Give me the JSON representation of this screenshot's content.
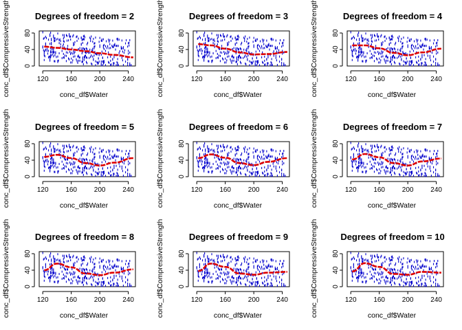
{
  "figure": {
    "xlabel": "conc_df$Water",
    "ylabel": "conc_df$CompressiveStrength",
    "title_prefix": "Degrees of freedom ="
  },
  "chart_data": [
    {
      "type": "scatter",
      "title": "Degrees of freedom =  2",
      "df": 2,
      "xlabel": "conc_df$Water",
      "ylabel": "conc_df$CompressiveStrength",
      "xticks": [
        120,
        160,
        200,
        240
      ],
      "yticks": [
        0,
        40,
        80
      ],
      "xlim": [
        115,
        250
      ],
      "ylim": [
        0,
        85
      ],
      "fit": {
        "x": [
          122,
          140,
          160,
          180,
          200,
          220,
          247
        ],
        "y": [
          47,
          44,
          40,
          36,
          31,
          27,
          21
        ]
      }
    },
    {
      "type": "scatter",
      "title": "Degrees of freedom =  3",
      "df": 3,
      "xlabel": "conc_df$Water",
      "ylabel": "conc_df$CompressiveStrength",
      "xticks": [
        120,
        160,
        200,
        240
      ],
      "yticks": [
        0,
        40,
        80
      ],
      "xlim": [
        115,
        250
      ],
      "ylim": [
        0,
        85
      ],
      "fit": {
        "x": [
          122,
          140,
          160,
          180,
          200,
          220,
          247
        ],
        "y": [
          53,
          50,
          42,
          33,
          28,
          29,
          34
        ]
      }
    },
    {
      "type": "scatter",
      "title": "Degrees of freedom =  4",
      "df": 4,
      "xlabel": "conc_df$Water",
      "ylabel": "conc_df$CompressiveStrength",
      "xticks": [
        120,
        160,
        200,
        240
      ],
      "yticks": [
        0,
        40,
        80
      ],
      "xlim": [
        115,
        250
      ],
      "ylim": [
        0,
        85
      ],
      "fit": {
        "x": [
          122,
          140,
          160,
          180,
          200,
          220,
          247
        ],
        "y": [
          50,
          50,
          43,
          32,
          26,
          33,
          42
        ]
      }
    },
    {
      "type": "scatter",
      "title": "Degrees of freedom =  5",
      "df": 5,
      "xlabel": "conc_df$Water",
      "ylabel": "conc_df$CompressiveStrength",
      "xticks": [
        120,
        160,
        200,
        240
      ],
      "yticks": [
        0,
        40,
        80
      ],
      "xlim": [
        115,
        250
      ],
      "ylim": [
        0,
        85
      ],
      "fit": {
        "x": [
          122,
          140,
          160,
          180,
          200,
          220,
          247
        ],
        "y": [
          48,
          53,
          45,
          33,
          27,
          34,
          45
        ]
      }
    },
    {
      "type": "scatter",
      "title": "Degrees of freedom =  6",
      "df": 6,
      "xlabel": "conc_df$Water",
      "ylabel": "conc_df$CompressiveStrength",
      "xticks": [
        120,
        160,
        200,
        240
      ],
      "yticks": [
        0,
        40,
        80
      ],
      "xlim": [
        115,
        250
      ],
      "ylim": [
        0,
        85
      ],
      "fit": {
        "x": [
          122,
          140,
          160,
          180,
          200,
          220,
          247
        ],
        "y": [
          45,
          54,
          46,
          33,
          28,
          36,
          45
        ]
      }
    },
    {
      "type": "scatter",
      "title": "Degrees of freedom =  7",
      "df": 7,
      "xlabel": "conc_df$Water",
      "ylabel": "conc_df$CompressiveStrength",
      "xticks": [
        120,
        160,
        200,
        240
      ],
      "yticks": [
        0,
        40,
        80
      ],
      "xlim": [
        115,
        250
      ],
      "ylim": [
        0,
        85
      ],
      "fit": {
        "x": [
          122,
          140,
          160,
          180,
          200,
          220,
          247
        ],
        "y": [
          42,
          55,
          47,
          33,
          27,
          37,
          44
        ]
      }
    },
    {
      "type": "scatter",
      "title": "Degrees of freedom =  8",
      "df": 8,
      "xlabel": "conc_df$Water",
      "ylabel": "conc_df$CompressiveStrength",
      "xticks": [
        120,
        160,
        200,
        240
      ],
      "yticks": [
        0,
        40,
        80
      ],
      "xlim": [
        115,
        250
      ],
      "ylim": [
        0,
        85
      ],
      "fit": {
        "x": [
          122,
          140,
          160,
          180,
          200,
          220,
          247
        ],
        "y": [
          40,
          56,
          47,
          32,
          28,
          34,
          42
        ]
      }
    },
    {
      "type": "scatter",
      "title": "Degrees of freedom =  9",
      "df": 9,
      "xlabel": "conc_df$Water",
      "ylabel": "conc_df$CompressiveStrength",
      "xticks": [
        120,
        160,
        200,
        240
      ],
      "yticks": [
        0,
        40,
        80
      ],
      "xlim": [
        115,
        250
      ],
      "ylim": [
        0,
        85
      ],
      "fit": {
        "x": [
          122,
          140,
          160,
          180,
          200,
          220,
          247
        ],
        "y": [
          38,
          56,
          48,
          32,
          29,
          34,
          36
        ]
      }
    },
    {
      "type": "scatter",
      "title": "Degrees of freedom =  10",
      "df": 10,
      "xlabel": "conc_df$Water",
      "ylabel": "conc_df$CompressiveStrength",
      "xticks": [
        120,
        160,
        200,
        240
      ],
      "yticks": [
        0,
        40,
        80
      ],
      "xlim": [
        115,
        250
      ],
      "ylim": [
        0,
        85
      ],
      "fit": {
        "x": [
          122,
          140,
          160,
          180,
          200,
          220,
          247
        ],
        "y": [
          37,
          57,
          48,
          31,
          29,
          36,
          34
        ]
      }
    }
  ],
  "colors": {
    "points": "#0000cc",
    "fit": "#dd0000",
    "axis": "#000000",
    "background": "#ffffff"
  }
}
